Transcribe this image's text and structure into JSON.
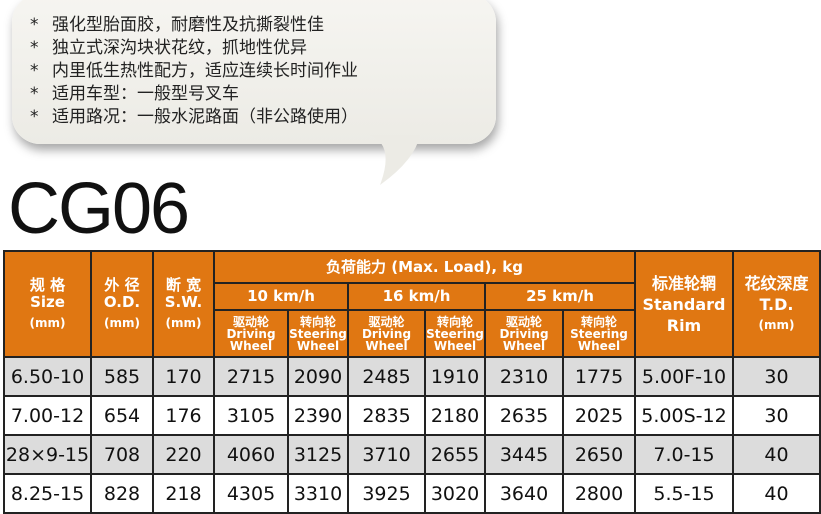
{
  "features": [
    "强化型胎面胶，耐磨性及抗撕裂性佳",
    "独立式深沟块状花纹，抓地性优异",
    "内里低生热性配方，适应连续长时间作业",
    "适用车型：一般型号叉车",
    "适用路况：一般水泥路面（非公路使用）"
  ],
  "bullet": "*",
  "model": "CG06",
  "header": {
    "size": {
      "cn": "规 格",
      "en": "Size",
      "unit": "(mm)"
    },
    "od": {
      "cn": "外 径",
      "en": "O.D.",
      "unit": "(mm)"
    },
    "sw": {
      "cn": "断 宽",
      "en": "S.W.",
      "unit": "(mm)"
    },
    "load": "负荷能力 (Max. Load), kg",
    "speeds": [
      "10 km/h",
      "16 km/h",
      "25 km/h"
    ],
    "driving": {
      "cn": "驱动轮",
      "en1": "Driving",
      "en2": "Wheel"
    },
    "steering": {
      "cn": "转向轮",
      "en1": "Steering",
      "en2": "Wheel"
    },
    "rim": {
      "cn": "标准轮辋",
      "en1": "Standard",
      "en2": "Rim"
    },
    "td": {
      "cn": "花纹深度",
      "en": "T.D.",
      "unit": "(mm)"
    }
  },
  "rows": [
    [
      "6.50-10",
      "585",
      "170",
      "2715",
      "2090",
      "2485",
      "1910",
      "2310",
      "1775",
      "5.00F-10",
      "30"
    ],
    [
      "7.00-12",
      "654",
      "176",
      "3105",
      "2390",
      "2835",
      "2180",
      "2635",
      "2025",
      "5.00S-12",
      "30"
    ],
    [
      "28×9-15",
      "708",
      "220",
      "4060",
      "3125",
      "3710",
      "2655",
      "3445",
      "2650",
      "7.0-15",
      "40"
    ],
    [
      "8.25-15",
      "828",
      "218",
      "4305",
      "3310",
      "3925",
      "3020",
      "3640",
      "2800",
      "5.5-15",
      "40"
    ]
  ],
  "colors": {
    "header": "#e07712",
    "stripe": "#dcdcdc"
  }
}
